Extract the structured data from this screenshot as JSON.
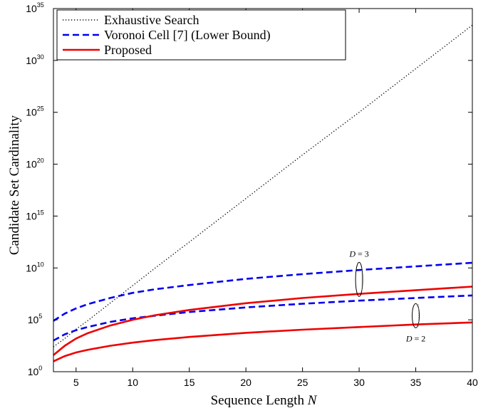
{
  "chart_data": {
    "type": "line",
    "xlabel": "Sequence Length",
    "xlabel_var": "N",
    "ylabel": "Candidate Set Cardinality",
    "xlim": [
      3,
      40
    ],
    "ylim_log10": [
      0,
      35
    ],
    "yscale": "log",
    "x_ticks": [
      5,
      10,
      15,
      20,
      25,
      30,
      35,
      40
    ],
    "y_ticks": [
      {
        "base": "10",
        "exp": "0"
      },
      {
        "base": "10",
        "exp": "5"
      },
      {
        "base": "10",
        "exp": "10"
      },
      {
        "base": "10",
        "exp": "15"
      },
      {
        "base": "10",
        "exp": "20"
      },
      {
        "base": "10",
        "exp": "25"
      },
      {
        "base": "10",
        "exp": "30"
      },
      {
        "base": "10",
        "exp": "35"
      }
    ],
    "legend_position": "top-left",
    "legend": [
      {
        "label": "Exhaustive Search",
        "style": "dotted",
        "color": "#000000"
      },
      {
        "label": "Voronoi Cell [7] (Lower Bound)",
        "style": "dashed",
        "color": "#0000ee"
      },
      {
        "label": "Proposed",
        "style": "solid",
        "color": "#ee0000"
      }
    ],
    "x": [
      3,
      4,
      5,
      6,
      8,
      10,
      12,
      15,
      20,
      25,
      30,
      35,
      40
    ],
    "series": [
      {
        "legend_index": 0,
        "group": "D=3",
        "style": "dotted",
        "color": "#000000",
        "log10_values": [
          2.4,
          3.2,
          4.1,
          4.9,
          6.6,
          8.3,
          10.0,
          12.5,
          16.7,
          20.9,
          25.0,
          29.2,
          33.4
        ]
      },
      {
        "legend_index": 1,
        "group": "D=3",
        "style": "dashed",
        "color": "#0000ee",
        "log10_values": [
          4.9,
          5.6,
          6.1,
          6.5,
          7.1,
          7.6,
          7.95,
          8.35,
          8.95,
          9.4,
          9.8,
          10.15,
          10.5
        ]
      },
      {
        "legend_index": 1,
        "group": "D=2",
        "style": "dashed",
        "color": "#0000ee",
        "log10_values": [
          3.0,
          3.6,
          4.0,
          4.3,
          4.8,
          5.15,
          5.4,
          5.75,
          6.2,
          6.55,
          6.85,
          7.1,
          7.35
        ]
      },
      {
        "legend_index": 2,
        "group": "D=3",
        "style": "solid",
        "color": "#ee0000",
        "log10_values": [
          1.6,
          2.5,
          3.2,
          3.7,
          4.45,
          5.0,
          5.45,
          5.95,
          6.6,
          7.1,
          7.5,
          7.85,
          8.2
        ]
      },
      {
        "legend_index": 2,
        "group": "D=2",
        "style": "solid",
        "color": "#ee0000",
        "log10_values": [
          1.0,
          1.5,
          1.85,
          2.1,
          2.5,
          2.8,
          3.05,
          3.35,
          3.75,
          4.05,
          4.3,
          4.55,
          4.75
        ]
      }
    ],
    "annotations": [
      {
        "var": "D",
        "text": " = 3",
        "x": 30,
        "log10_y": 8.9
      },
      {
        "var": "D",
        "text": " = 2",
        "x": 35,
        "log10_y": 5.4
      }
    ]
  }
}
